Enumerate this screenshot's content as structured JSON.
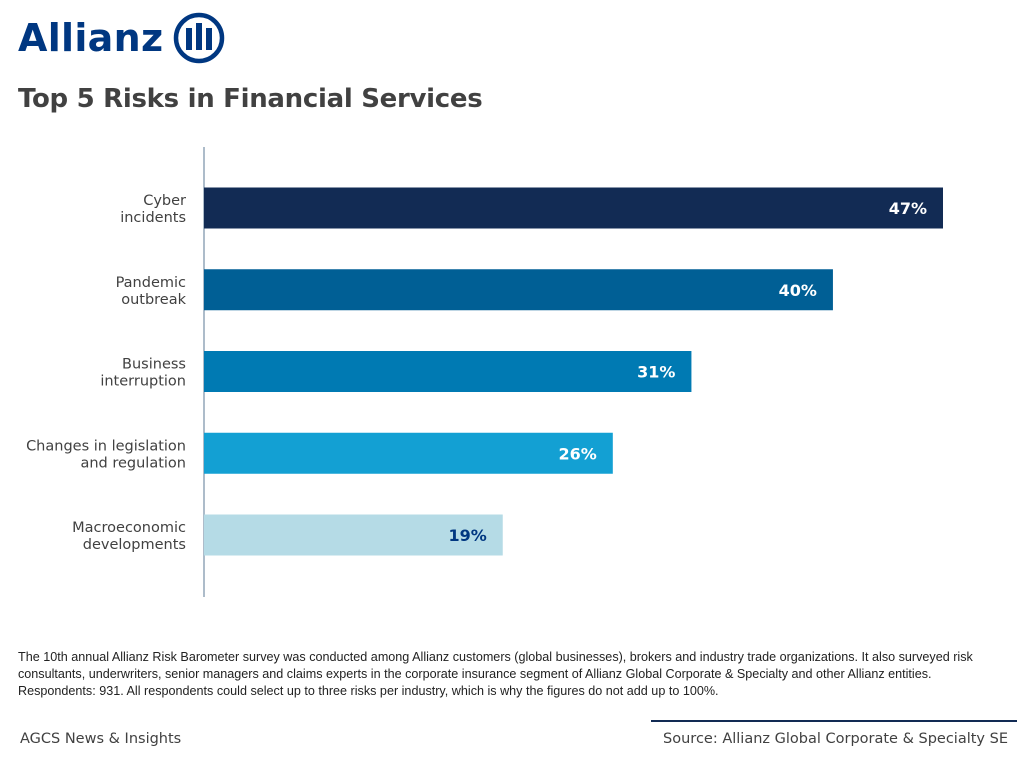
{
  "brand": {
    "name": "Allianz",
    "color": "#003781",
    "logo_icon": "allianz-eagle-icon"
  },
  "title": "Top 5 Risks in Financial Services",
  "chart_data": {
    "type": "bar",
    "orientation": "horizontal",
    "title": "Top 5 Risks in Financial Services",
    "categories": [
      "Cyber incidents",
      "Pandemic outbreak",
      "Business interruption",
      "Changes in legislation and regulation",
      "Macroeconomic developments"
    ],
    "category_lines": [
      [
        "Cyber",
        "incidents"
      ],
      [
        "Pandemic",
        "outbreak"
      ],
      [
        "Business",
        "interruption"
      ],
      [
        "Changes in legislation",
        "and regulation"
      ],
      [
        "Macroeconomic",
        "developments"
      ]
    ],
    "values": [
      47,
      40,
      31,
      26,
      19
    ],
    "value_labels": [
      "47%",
      "40%",
      "31%",
      "26%",
      "19%"
    ],
    "unit": "%",
    "bar_colors": [
      "#122b54",
      "#005f95",
      "#007ab3",
      "#13a0d3",
      "#b5dbe6"
    ],
    "label_colors": [
      "#ffffff",
      "#ffffff",
      "#ffffff",
      "#ffffff",
      "#003781"
    ],
    "xlim": [
      0,
      47
    ],
    "grid": false,
    "legend": "none"
  },
  "footnote": "The 10th annual Allianz Risk Barometer survey was conducted among Allianz customers (global businesses), brokers and industry trade organizations. It also surveyed risk consultants, underwriters, senior managers and claims experts in the corporate insurance segment of Allianz Global Corporate & Specialty and other Allianz entities. Respondents: 931. All respondents could select up to three risks per industry, which is why the figures do not add up to 100%.",
  "footer": {
    "left": "AGCS News & Insights",
    "right": "Source: Allianz Global Corporate & Specialty SE"
  }
}
